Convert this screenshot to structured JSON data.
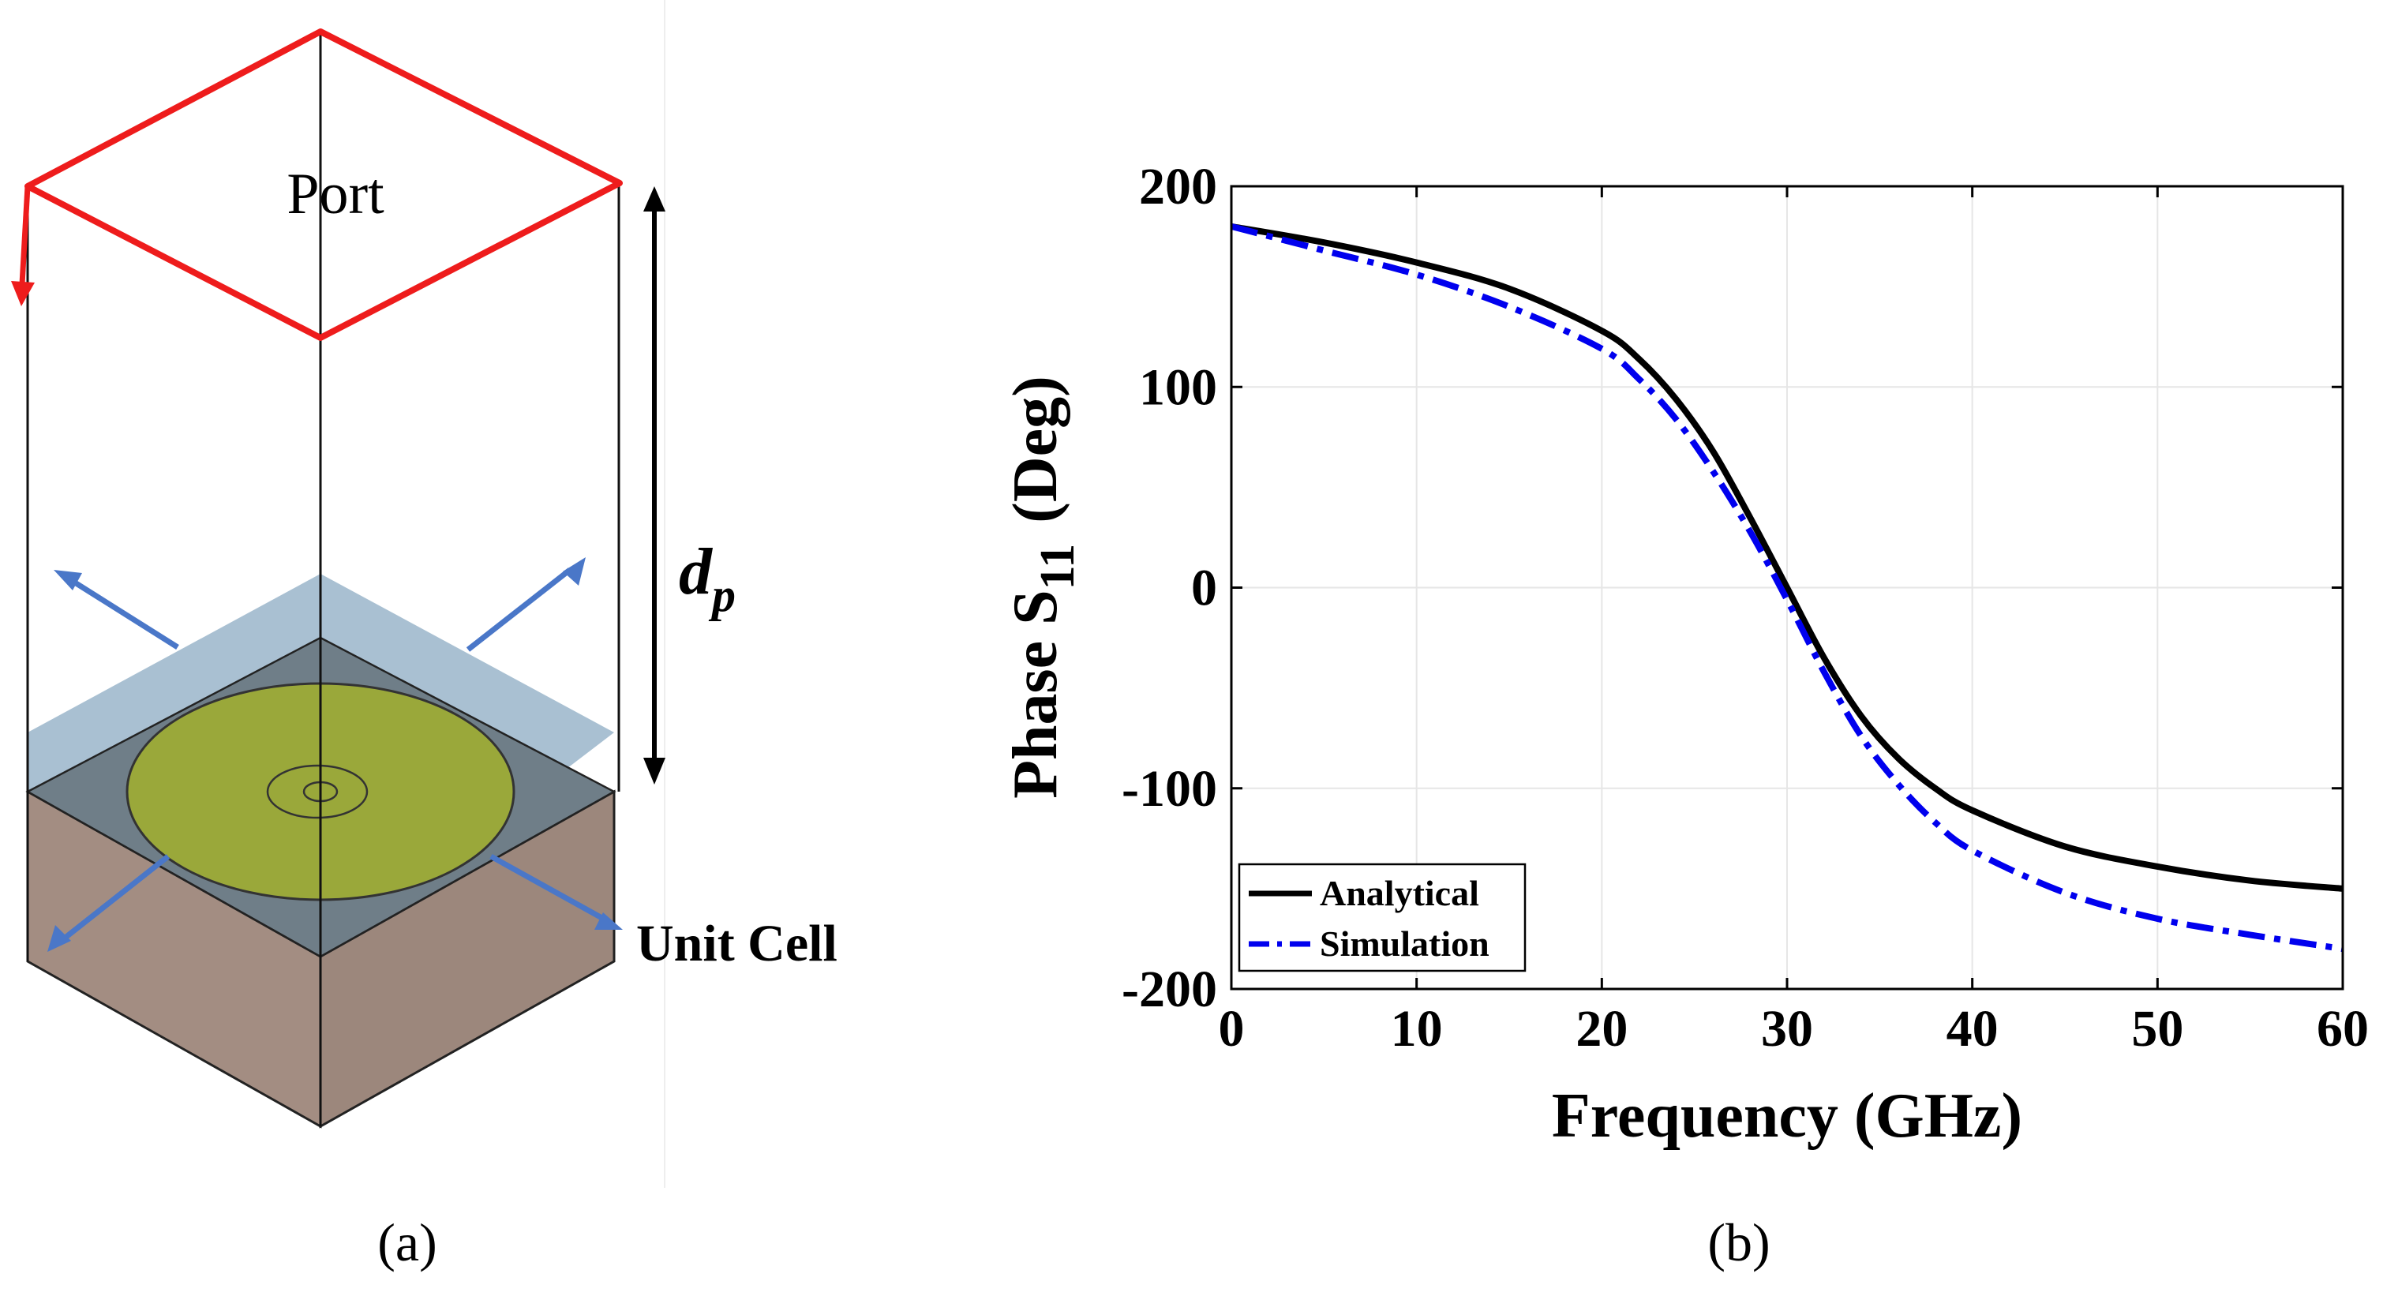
{
  "figure": {
    "panel_a_caption": "(a)",
    "panel_b_caption": "(b)"
  },
  "diagram": {
    "port_label": "Port",
    "dp_label_main": "d",
    "dp_label_sub": "p",
    "unit_cell_label": "Unit Cell",
    "colors": {
      "port_outline": "#ee1c1c",
      "dielectric_top": "#a9c0d2",
      "patch": "#9aa83a",
      "ground_block": "#a38d82",
      "arrow_blue": "#4a77c8"
    }
  },
  "chart_data": {
    "type": "line",
    "title": "",
    "xlabel": "Frequency (GHz)",
    "ylabel_main": "Phase S",
    "ylabel_sub": "11",
    "ylabel_unit": "(Deg)",
    "xlim": [
      0,
      60
    ],
    "ylim": [
      -200,
      200
    ],
    "xticks": [
      0,
      10,
      20,
      30,
      40,
      50,
      60
    ],
    "yticks": [
      -200,
      -100,
      0,
      100,
      200
    ],
    "xtick_labels": [
      "0",
      "10",
      "20",
      "30",
      "40",
      "50",
      "60"
    ],
    "ytick_labels": [
      "-200",
      "-100",
      "0",
      "100",
      "200"
    ],
    "grid": true,
    "legend_position": "bottom-left",
    "series": [
      {
        "name": "Analytical",
        "color": "#000000",
        "style": "solid",
        "x": [
          0,
          5,
          10,
          15,
          20,
          22,
          24,
          26,
          28,
          30,
          32,
          34,
          36,
          38,
          40,
          45,
          50,
          55,
          60
        ],
        "y": [
          180,
          172,
          162,
          149,
          128,
          114,
          94,
          68,
          35,
          0,
          -35,
          -64,
          -85,
          -100,
          -111,
          -129,
          -139,
          -146,
          -150
        ]
      },
      {
        "name": "Simulation",
        "color": "#0000ee",
        "style": "dashdot",
        "x": [
          0,
          5,
          10,
          15,
          20,
          22,
          24,
          26,
          28,
          30,
          32,
          34,
          36,
          38,
          40,
          45,
          50,
          55,
          60
        ],
        "y": [
          180,
          168,
          156,
          140,
          119,
          104,
          84,
          58,
          28,
          -6,
          -42,
          -74,
          -98,
          -117,
          -131,
          -152,
          -165,
          -173,
          -180
        ]
      }
    ]
  }
}
